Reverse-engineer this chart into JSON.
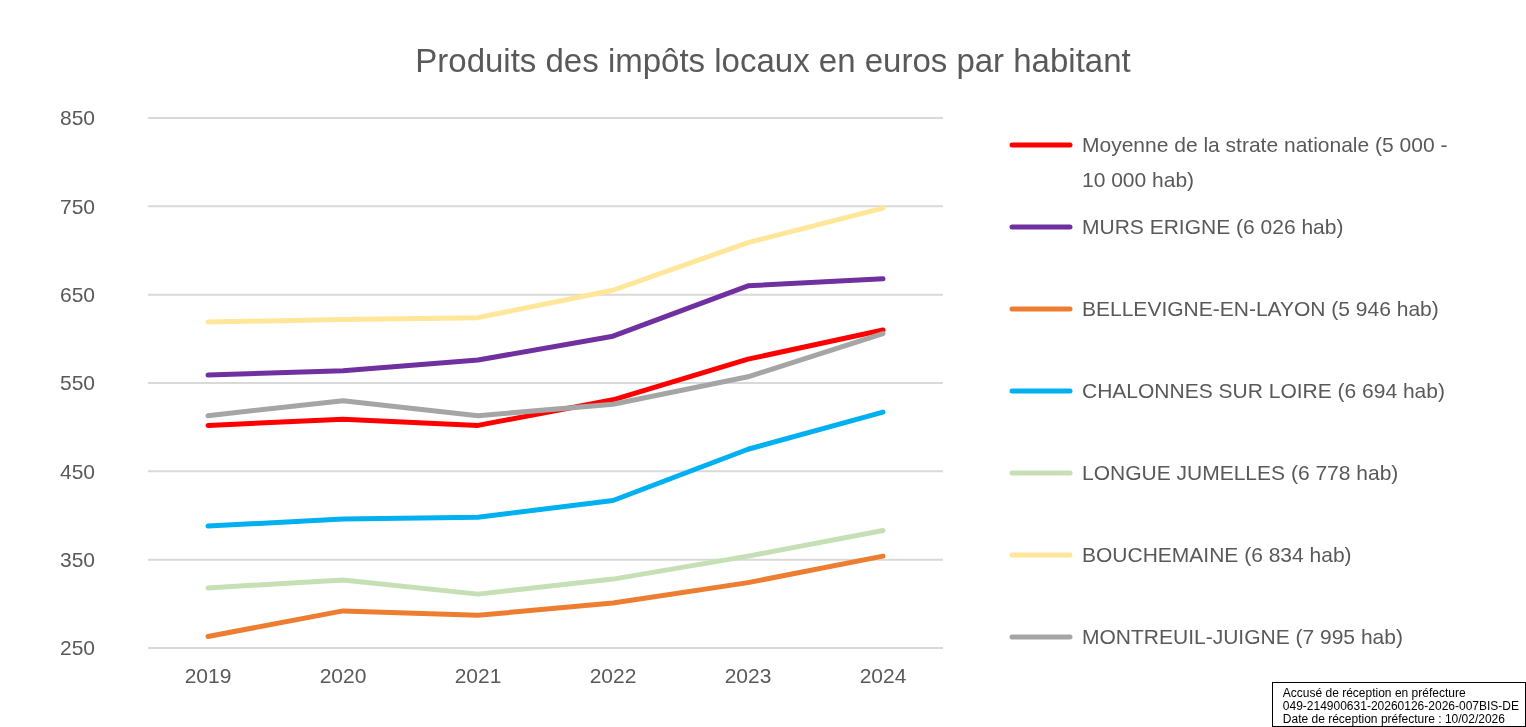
{
  "chart_data": {
    "type": "line",
    "title": "Produits des impôts locaux en euros par habitant",
    "categories": [
      "2019",
      "2020",
      "2021",
      "2022",
      "2023",
      "2024"
    ],
    "series": [
      {
        "name": "Moyenne de la strate nationale (5 000 - 10 000 hab)",
        "color": "#ff0000",
        "values": [
          502,
          509,
          502,
          531,
          577,
          610
        ]
      },
      {
        "name": "MURS ERIGNE (6 026 hab)",
        "color": "#7030a0",
        "values": [
          559,
          564,
          576,
          603,
          660,
          668
        ]
      },
      {
        "name": "BELLEVIGNE-EN-LAYON (5 946 hab)",
        "color": "#ed7d31",
        "values": [
          263,
          292,
          287,
          301,
          324,
          354
        ]
      },
      {
        "name": "CHALONNES SUR LOIRE (6 694 hab)",
        "color": "#00b0f0",
        "values": [
          388,
          396,
          398,
          417,
          475,
          517
        ]
      },
      {
        "name": "LONGUE JUMELLES (6 778 hab)",
        "color": "#c5e0b4",
        "values": [
          318,
          327,
          311,
          328,
          354,
          383
        ]
      },
      {
        "name": "BOUCHEMAINE (6 834 hab)",
        "color": "#ffe699",
        "values": [
          619,
          622,
          624,
          655,
          709,
          748
        ]
      },
      {
        "name": "MONTREUIL-JUIGNE (7 995 hab)",
        "color": "#a5a5a5",
        "values": [
          513,
          530,
          513,
          526,
          557,
          606
        ]
      }
    ],
    "ylim": [
      250,
      850
    ],
    "yticks": [
      250,
      350,
      450,
      550,
      650,
      750,
      850
    ],
    "grid": "y",
    "legend": "right",
    "marker": "none",
    "line_style": "solid",
    "annotations": [
      "Accusé de réception en préfecture\n049-214900631-20260126-2026-007BIS-DE\nDate de réception préfecture : 10/02/2026"
    ]
  }
}
